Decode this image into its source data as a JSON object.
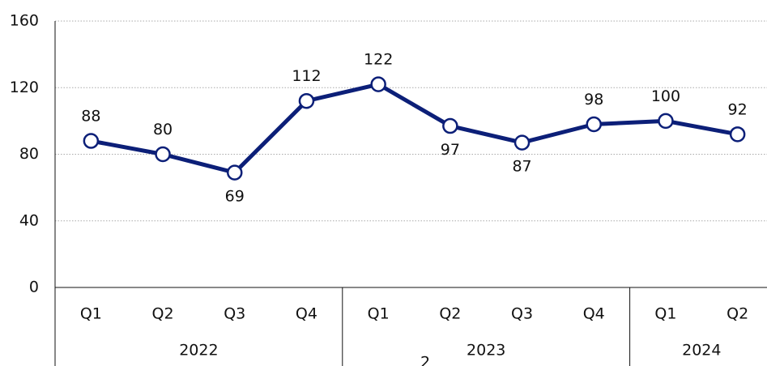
{
  "chart_data": {
    "type": "line",
    "groups": [
      {
        "name": "2022",
        "categories": [
          "Q1",
          "Q2",
          "Q3",
          "Q4"
        ]
      },
      {
        "name": "2023",
        "categories": [
          "Q1",
          "Q2",
          "Q3",
          "Q4"
        ]
      },
      {
        "name": "2024",
        "categories": [
          "Q1",
          "Q2"
        ]
      }
    ],
    "values": [
      88,
      80,
      69,
      112,
      122,
      97,
      87,
      98,
      100,
      92
    ],
    "color": "#0c1f78",
    "ylim": [
      0,
      160
    ],
    "yticks": [
      0,
      40,
      80,
      120,
      160
    ],
    "grid": true
  },
  "footer_text": "2"
}
